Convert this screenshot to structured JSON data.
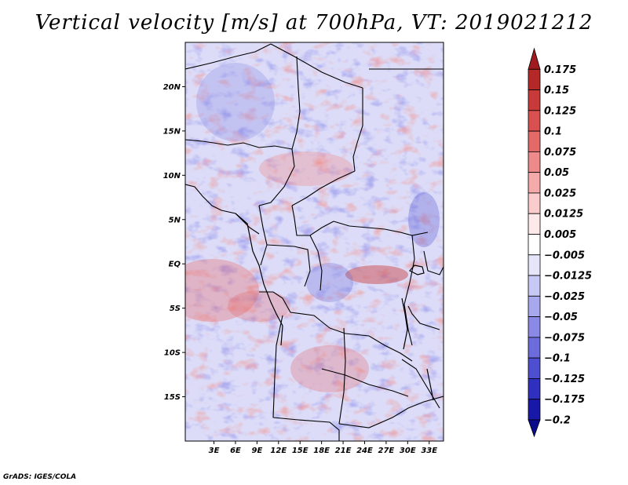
{
  "title": "Vertical velocity [m/s] at 700hPa, VT: 2019021212",
  "credit": "GrADS: IGES/COLA",
  "map": {
    "lon_range": [
      -1,
      35
    ],
    "lat_range": [
      -20,
      25
    ],
    "lat_ticks": [
      {
        "lat": 20,
        "label": "20N"
      },
      {
        "lat": 15,
        "label": "15N"
      },
      {
        "lat": 10,
        "label": "10N"
      },
      {
        "lat": 5,
        "label": "5N"
      },
      {
        "lat": 0,
        "label": "EQ"
      },
      {
        "lat": -5,
        "label": "5S"
      },
      {
        "lat": -10,
        "label": "10S"
      },
      {
        "lat": -15,
        "label": "15S"
      }
    ],
    "lon_ticks": [
      {
        "lon": 3,
        "label": "3E"
      },
      {
        "lon": 6,
        "label": "6E"
      },
      {
        "lon": 9,
        "label": "9E"
      },
      {
        "lon": 12,
        "label": "12E"
      },
      {
        "lon": 15,
        "label": "15E"
      },
      {
        "lon": 18,
        "label": "18E"
      },
      {
        "lon": 21,
        "label": "21E"
      },
      {
        "lon": 24,
        "label": "24E"
      },
      {
        "lon": 27,
        "label": "27E"
      },
      {
        "lon": 30,
        "label": "30E"
      },
      {
        "lon": 33,
        "label": "33E"
      }
    ]
  },
  "colorbar": {
    "labels": [
      "0.175",
      "0.15",
      "0.125",
      "0.1",
      "0.075",
      "0.05",
      "0.025",
      "0.0125",
      "0.005",
      "−0.005",
      "−0.0125",
      "−0.025",
      "−0.05",
      "−0.075",
      "−0.1",
      "−0.125",
      "−0.175",
      "−0.2"
    ],
    "colors": [
      "#a01a20",
      "#b42828",
      "#c83a3a",
      "#d85050",
      "#e46a6a",
      "#ee8a8a",
      "#f5aaaa",
      "#facccc",
      "#fde9e9",
      "#ffffff",
      "#e6e6fb",
      "#c8c8f4",
      "#a8a8ee",
      "#8a8ae6",
      "#6c6cdc",
      "#4e4ed0",
      "#3030c0",
      "#1818a8",
      "#0a0a8c"
    ]
  }
}
